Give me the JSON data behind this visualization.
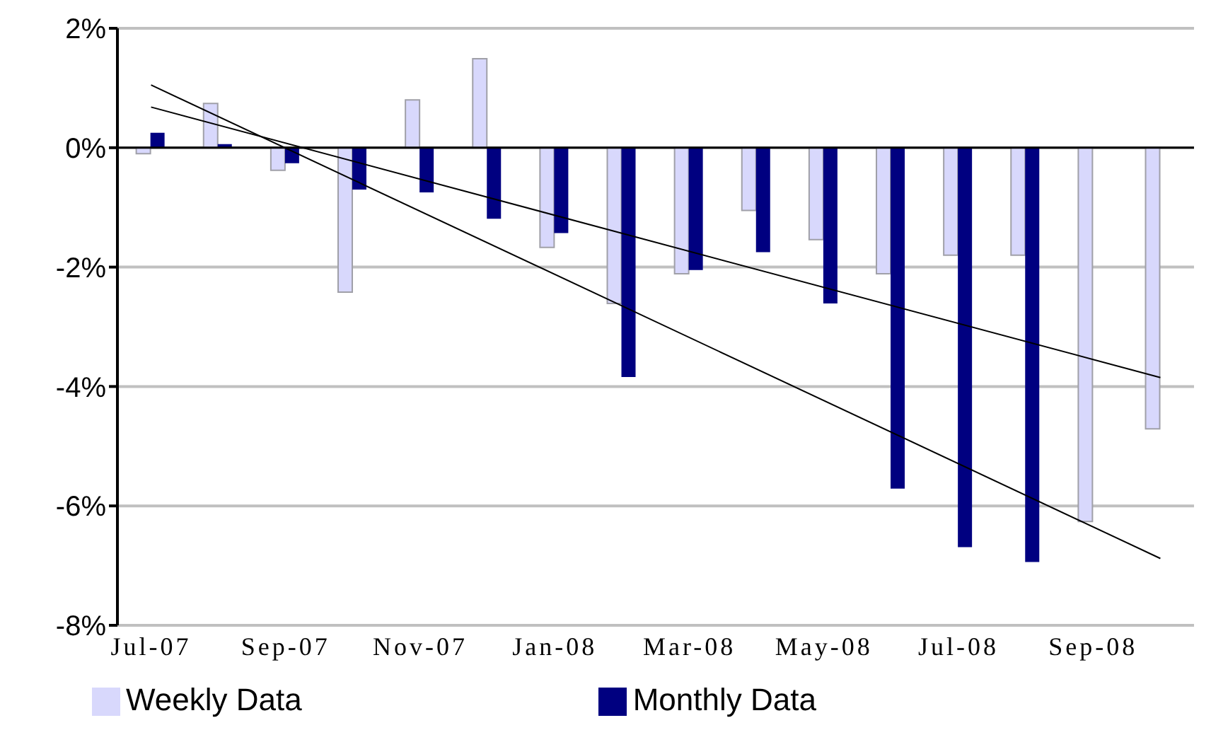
{
  "chart_data": {
    "type": "bar",
    "categories": [
      "Jul-07",
      null,
      "Sep-07",
      null,
      "Nov-07",
      null,
      "Jan-08",
      null,
      "Mar-08",
      null,
      "May-08",
      null,
      "Jul-08",
      null,
      "Sep-08",
      null
    ],
    "series": [
      {
        "name": "Weekly Data",
        "color": "#d8d8fc",
        "values": [
          -0.1,
          0.74,
          -0.38,
          -2.42,
          0.8,
          1.49,
          -1.67,
          -2.61,
          -2.11,
          -1.05,
          -1.54,
          -2.11,
          -1.8,
          -1.8,
          -6.26,
          -4.71
        ]
      },
      {
        "name": "Monthly Data",
        "color": "#000080",
        "values": [
          0.25,
          0.06,
          -0.26,
          -0.7,
          -0.75,
          -1.19,
          -1.43,
          -3.84,
          -2.05,
          -1.75,
          -2.61,
          -5.71,
          -6.69,
          -6.94,
          null,
          null
        ]
      },
      {
        "type": "line",
        "color": "#000000",
        "values": [
          0.68,
          null,
          null,
          null,
          null,
          null,
          null,
          null,
          null,
          null,
          null,
          null,
          null,
          null,
          null,
          -3.85
        ]
      },
      {
        "type": "line",
        "color": "#000000",
        "values": [
          1.05,
          null,
          null,
          null,
          null,
          null,
          null,
          null,
          null,
          null,
          null,
          null,
          null,
          null,
          null,
          -6.88
        ]
      }
    ],
    "ylim": [
      -8,
      2
    ],
    "yticks": [
      {
        "value": -8,
        "label": "-8%"
      },
      {
        "value": -6,
        "label": "-6%"
      },
      {
        "value": -4,
        "label": "-4%"
      },
      {
        "value": -2,
        "label": "-2%"
      },
      {
        "value": 0,
        "label": "0%"
      },
      {
        "value": 2,
        "label": "2%"
      }
    ],
    "ref_lines": [
      {
        "axis": "y",
        "value": 0,
        "color": "#000000"
      }
    ],
    "grid": "y",
    "legend": "bottom",
    "marker": "none"
  }
}
